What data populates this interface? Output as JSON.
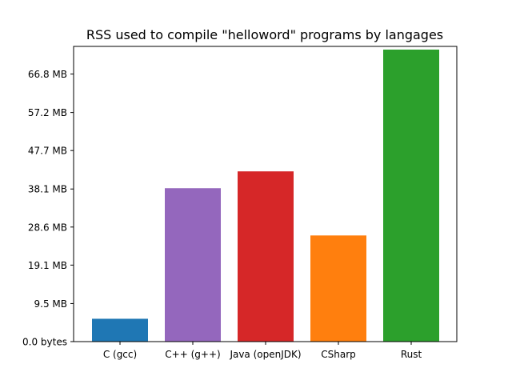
{
  "chart_data": {
    "type": "bar",
    "title": "RSS used to compile \"helloword\" programs by langages",
    "xlabel": "",
    "ylabel": "",
    "categories": [
      "C (gcc)",
      "C++ (g++)",
      "Java (openJDK)",
      "CSharp",
      "Rust"
    ],
    "values_mb": [
      5.8,
      38.4,
      42.6,
      26.6,
      73.0
    ],
    "bar_colors": [
      "#1f77b4",
      "#9467bd",
      "#d62728",
      "#ff7f0e",
      "#2ca02c"
    ],
    "y_ticks": [
      {
        "value": 0.0,
        "label": "0.0 bytes"
      },
      {
        "value": 9.5,
        "label": "9.5 MB"
      },
      {
        "value": 19.1,
        "label": "19.1 MB"
      },
      {
        "value": 28.6,
        "label": "28.6 MB"
      },
      {
        "value": 38.1,
        "label": "38.1 MB"
      },
      {
        "value": 47.7,
        "label": "47.7 MB"
      },
      {
        "value": 57.2,
        "label": "57.2 MB"
      },
      {
        "value": 66.8,
        "label": "66.8 MB"
      }
    ],
    "ylim": [
      0,
      73.7
    ],
    "grid": false,
    "legend": false
  }
}
